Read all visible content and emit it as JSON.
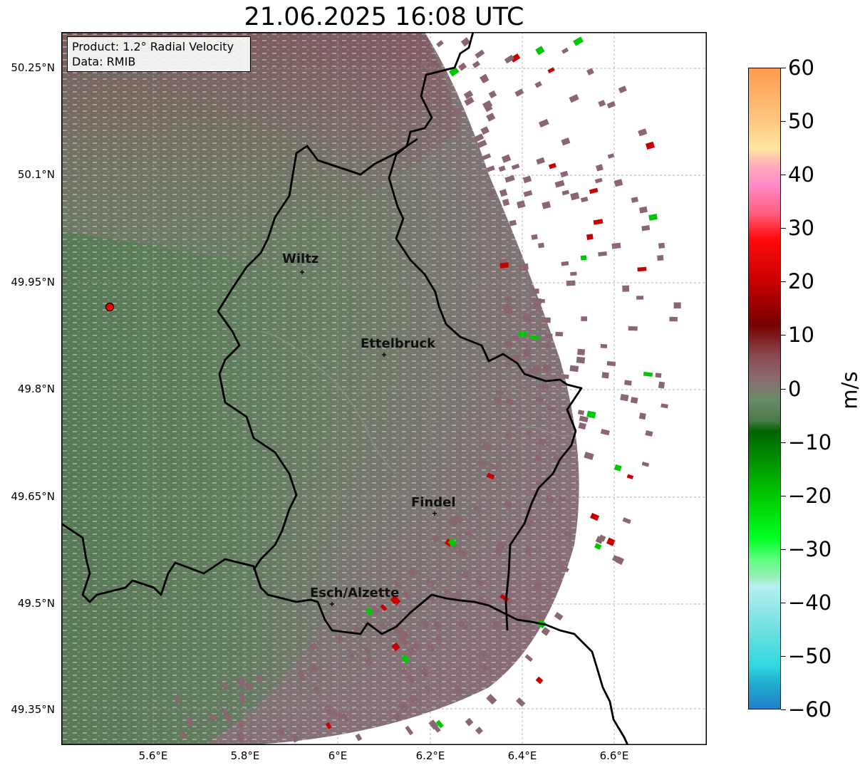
{
  "title": "21.06.2025 16:08 UTC",
  "info": {
    "product": "Product: 1.2° Radial Velocity",
    "data_source": "Data: RMIB"
  },
  "lat_ticks": [
    "50.25°N",
    "50.1°N",
    "49.95°N",
    "49.8°N",
    "49.65°N",
    "49.5°N",
    "49.35°N"
  ],
  "lon_ticks": [
    "5.6°E",
    "5.8°E",
    "6°E",
    "6.2°E",
    "6.4°E",
    "6.6°E"
  ],
  "cities": [
    {
      "name": "Wiltz"
    },
    {
      "name": "Ettelbruck"
    },
    {
      "name": "Findel"
    },
    {
      "name": "Esch/Alzette"
    }
  ],
  "colorbar": {
    "unit": "m/s",
    "tick_labels": [
      "60",
      "50",
      "40",
      "30",
      "20",
      "10",
      "0",
      "−10",
      "−20",
      "−30",
      "−40",
      "−50",
      "−60"
    ],
    "range": [
      -60,
      60
    ],
    "stops": [
      {
        "value": 60,
        "color": "#ff9a50"
      },
      {
        "value": 50,
        "color": "#ffc880"
      },
      {
        "value": 45,
        "color": "#ffe6a0"
      },
      {
        "value": 42,
        "color": "#ffb0b8"
      },
      {
        "value": 38,
        "color": "#ff88c8"
      },
      {
        "value": 33,
        "color": "#ff6080"
      },
      {
        "value": 28,
        "color": "#ff0a0a"
      },
      {
        "value": 20,
        "color": "#c80000"
      },
      {
        "value": 12,
        "color": "#780000"
      },
      {
        "value": 6,
        "color": "#8a4a52"
      },
      {
        "value": 2,
        "color": "#8a6a70"
      },
      {
        "value": -2,
        "color": "#6a8a6a"
      },
      {
        "value": -6,
        "color": "#4a7a4a"
      },
      {
        "value": -8,
        "color": "#006400"
      },
      {
        "value": -20,
        "color": "#00c800"
      },
      {
        "value": -28,
        "color": "#00ff20"
      },
      {
        "value": -32,
        "color": "#60ff80"
      },
      {
        "value": -35,
        "color": "#90f0b0"
      },
      {
        "value": -37,
        "color": "#b8f0f0"
      },
      {
        "value": -45,
        "color": "#70e0e0"
      },
      {
        "value": -52,
        "color": "#30d8e0"
      },
      {
        "value": -55,
        "color": "#20b0d0"
      },
      {
        "value": -60,
        "color": "#2080c8"
      }
    ]
  },
  "colors": {
    "approaching": "#5e7e5e",
    "receding": "#8a6670",
    "border": "#000000",
    "radar_site": "#ff0000"
  }
}
